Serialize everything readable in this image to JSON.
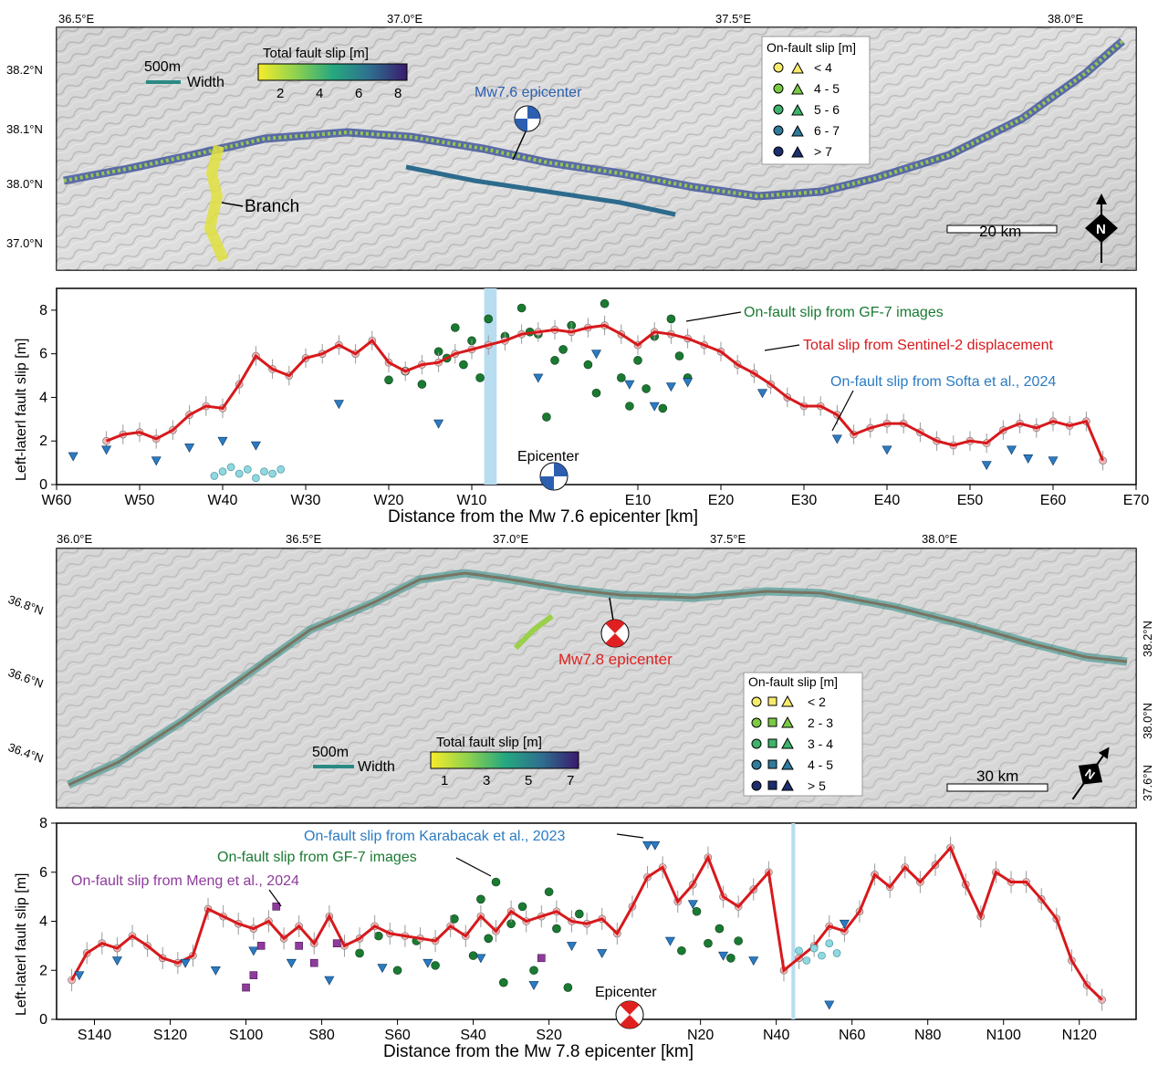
{
  "map1": {
    "lon_ticks": [
      "36.5°E",
      "37.0°E",
      "37.5°E",
      "38.0°E"
    ],
    "lat_ticks": [
      "38.2°N",
      "38.1°N",
      "38.0°N",
      "37.0°N"
    ],
    "width_label": "500m",
    "width_text": "Width",
    "colorbar_title": "Total fault slip [m]",
    "colorbar_ticks": [
      "2",
      "4",
      "6",
      "8"
    ],
    "epicenter_label": "Mw7.6 epicenter",
    "branch_label": "Branch",
    "legend_title": "On-fault slip [m]",
    "legend_items": [
      "< 4",
      "4 - 5",
      "5 - 6",
      "6 - 7",
      "> 7"
    ],
    "scale_label": "20 km",
    "north_label": "N"
  },
  "map2": {
    "lon_ticks": [
      "36.0°E",
      "36.5°E",
      "37.0°E",
      "37.5°E",
      "38.0°E"
    ],
    "lat_ticks_left": [
      "36.8°N",
      "36.6°N",
      "36.4°N"
    ],
    "lat_ticks_right": [
      "38.2°N",
      "38.0°N",
      "37.6°N"
    ],
    "width_label": "500m",
    "width_text": "Width",
    "colorbar_title": "Total fault slip [m]",
    "colorbar_ticks": [
      "1",
      "3",
      "5",
      "7"
    ],
    "epicenter_label": "Mw7.8 epicenter",
    "legend_title": "On-fault slip [m]",
    "legend_items": [
      "< 2",
      "2 - 3",
      "3 - 4",
      "4 - 5",
      "> 5"
    ],
    "scale_label": "30 km",
    "north_label": "N"
  },
  "colors": {
    "total_slip": "#d7191c",
    "sentinel_point": "#f4b6b6",
    "gf7": "#1a7a32",
    "softa": "#2b7bc2",
    "meng": "#8e3b9c",
    "cyan_points": "#8fd8e0",
    "epicenter_band": "#b8dcf0"
  },
  "chart_data": [
    {
      "type": "line",
      "title": "",
      "xlabel": "Distance from the Mw 7.6 epicenter [km]",
      "ylabel": "Left-laterl fault slip [m]",
      "xlim": [
        -60,
        70
      ],
      "ylim": [
        0,
        9
      ],
      "x_ticks": [
        -60,
        -50,
        -40,
        -30,
        -20,
        -10,
        0,
        10,
        20,
        30,
        40,
        50,
        60,
        70
      ],
      "x_tick_labels": [
        "W60",
        "W50",
        "W40",
        "W30",
        "W20",
        "W10",
        "",
        "E10",
        "E20",
        "E30",
        "E40",
        "E50",
        "E60",
        "E70"
      ],
      "y_ticks": [
        0,
        2,
        4,
        6,
        8
      ],
      "epicenter_label": "Epicenter",
      "epicenter_x": 0,
      "epicenter_band": [
        -8.5,
        -7
      ],
      "annotations": [
        "On-fault slip from GF-7 images",
        "Total slip from Sentinel-2 displacement",
        "On-fault slip from Softa et al., 2024"
      ],
      "series": [
        {
          "name": "Total slip from Sentinel-2 displacement",
          "x": [
            -54,
            -52,
            -50,
            -48,
            -46,
            -44,
            -42,
            -40,
            -38,
            -36,
            -34,
            -32,
            -30,
            -28,
            -26,
            -24,
            -22,
            -20,
            -18,
            -16,
            -14,
            -12,
            -10,
            -8,
            -6,
            -4,
            -2,
            0,
            2,
            4,
            6,
            8,
            10,
            12,
            14,
            16,
            18,
            20,
            22,
            24,
            26,
            28,
            30,
            32,
            34,
            36,
            38,
            40,
            42,
            44,
            46,
            48,
            50,
            52,
            54,
            56,
            58,
            60,
            62,
            64,
            66
          ],
          "y": [
            2.0,
            2.3,
            2.4,
            2.1,
            2.5,
            3.2,
            3.6,
            3.5,
            4.6,
            5.9,
            5.3,
            5.0,
            5.8,
            6.0,
            6.4,
            6.0,
            6.6,
            5.6,
            5.2,
            5.5,
            5.6,
            6.0,
            6.2,
            6.4,
            6.6,
            6.9,
            7.0,
            7.1,
            7.0,
            7.2,
            7.3,
            6.9,
            6.4,
            7.0,
            6.9,
            6.7,
            6.4,
            6.1,
            5.5,
            5.1,
            4.6,
            4.0,
            3.6,
            3.6,
            3.2,
            2.3,
            2.6,
            2.8,
            2.8,
            2.4,
            2.0,
            1.8,
            2.0,
            1.9,
            2.5,
            2.8,
            2.6,
            2.9,
            2.7,
            2.9,
            1.1
          ]
        },
        {
          "name": "On-fault slip from GF-7 images",
          "x": [
            -20,
            -18,
            -16,
            -14,
            -13,
            -12,
            -11,
            -10,
            -9,
            -8,
            -6,
            -4,
            -3,
            -2,
            -1,
            0,
            1,
            2,
            4,
            5,
            6,
            8,
            9,
            10,
            11,
            12,
            13,
            14,
            15,
            16
          ],
          "y": [
            4.8,
            5.2,
            4.6,
            6.1,
            5.8,
            7.2,
            5.5,
            6.6,
            4.9,
            7.6,
            6.8,
            8.1,
            7.0,
            6.9,
            3.1,
            5.7,
            6.2,
            7.3,
            5.5,
            4.2,
            8.3,
            4.9,
            3.6,
            5.7,
            4.4,
            6.8,
            3.5,
            7.6,
            5.9,
            4.9
          ]
        },
        {
          "name": "On-fault slip from Softa et al., 2024",
          "x": [
            -58,
            -54,
            -48,
            -44,
            -40,
            -36,
            -26,
            -14,
            -2,
            5,
            9,
            12,
            14,
            16,
            25,
            34,
            40,
            52,
            55,
            57,
            60
          ],
          "y": [
            1.3,
            1.6,
            1.1,
            1.7,
            2.0,
            1.8,
            3.7,
            2.8,
            4.9,
            6.0,
            4.6,
            3.6,
            4.5,
            4.7,
            4.2,
            2.1,
            1.6,
            0.9,
            1.6,
            1.2,
            1.1
          ]
        },
        {
          "name": "",
          "x": [
            -41,
            -40,
            -39,
            -38,
            -37,
            -36,
            -35,
            -34,
            -33
          ],
          "y": [
            0.4,
            0.6,
            0.8,
            0.5,
            0.7,
            0.3,
            0.6,
            0.5,
            0.7
          ]
        }
      ]
    },
    {
      "type": "line",
      "title": "",
      "xlabel": "Distance from the Mw 7.8 epicenter [km]",
      "ylabel": "Left-laterl fault slip [m]",
      "xlim": [
        -150,
        135
      ],
      "ylim": [
        0,
        8
      ],
      "x_ticks": [
        -140,
        -120,
        -100,
        -80,
        -60,
        -40,
        -20,
        0,
        20,
        40,
        60,
        80,
        100,
        120
      ],
      "x_tick_labels": [
        "S140",
        "S120",
        "S100",
        "S80",
        "S60",
        "S40",
        "S20",
        "",
        "N20",
        "N40",
        "N60",
        "N80",
        "N100",
        "N120"
      ],
      "y_ticks": [
        0,
        2,
        4,
        6,
        8
      ],
      "epicenter_label": "Epicenter",
      "epicenter_x": 0,
      "epicenter_band": [
        44,
        45
      ],
      "annotations": [
        "On-fault slip from Karabacak et al., 2023",
        "On-fault slip from GF-7 images",
        "On-fault slip from Meng et al., 2024"
      ],
      "series": [
        {
          "name": "Total slip from Sentinel-2 displacement",
          "x": [
            -146,
            -142,
            -138,
            -134,
            -130,
            -126,
            -122,
            -118,
            -114,
            -110,
            -106,
            -102,
            -98,
            -94,
            -90,
            -86,
            -82,
            -78,
            -74,
            -70,
            -66,
            -62,
            -58,
            -54,
            -50,
            -46,
            -42,
            -38,
            -34,
            -30,
            -26,
            -22,
            -18,
            -14,
            -10,
            -6,
            -2,
            2,
            6,
            10,
            14,
            18,
            22,
            26,
            30,
            34,
            38,
            42,
            46,
            50,
            54,
            58,
            62,
            66,
            70,
            74,
            78,
            82,
            86,
            90,
            94,
            98,
            102,
            106,
            110,
            114,
            118,
            122,
            126
          ],
          "y": [
            1.6,
            2.7,
            3.1,
            2.9,
            3.4,
            3.0,
            2.5,
            2.3,
            2.6,
            4.5,
            4.2,
            3.9,
            3.7,
            4.0,
            3.3,
            3.8,
            3.1,
            4.2,
            3.0,
            3.3,
            3.8,
            3.5,
            3.4,
            3.3,
            3.2,
            3.8,
            3.4,
            4.2,
            3.6,
            4.4,
            4.0,
            4.2,
            4.4,
            4.0,
            3.9,
            4.1,
            3.5,
            4.6,
            5.8,
            6.2,
            4.8,
            5.5,
            6.6,
            5.0,
            4.6,
            5.3,
            6.0,
            2.0,
            2.5,
            3.0,
            3.8,
            3.6,
            4.4,
            5.9,
            5.4,
            6.2,
            5.6,
            6.3,
            7.0,
            5.5,
            4.2,
            6.0,
            5.6,
            5.6,
            4.9,
            4.1,
            2.4,
            1.4,
            0.8
          ]
        },
        {
          "name": "On-fault slip from GF-7 images",
          "x": [
            -70,
            -65,
            -60,
            -55,
            -50,
            -45,
            -40,
            -38,
            -36,
            -34,
            -32,
            -30,
            -27,
            -24,
            -20,
            -18,
            -15,
            -12,
            15,
            19,
            22,
            25,
            28,
            30
          ],
          "y": [
            2.7,
            3.4,
            2.0,
            3.2,
            2.2,
            4.1,
            2.6,
            4.9,
            3.3,
            5.6,
            1.5,
            3.9,
            4.6,
            2.0,
            5.2,
            3.7,
            1.3,
            4.3,
            2.8,
            4.4,
            3.1,
            3.7,
            2.5,
            3.2
          ]
        },
        {
          "name": "On-fault slip from Karabacak et al., 2023",
          "x": [
            -144,
            -134,
            -116,
            -108,
            -98,
            -88,
            -78,
            -64,
            -52,
            -38,
            -24,
            -14,
            -6,
            6,
            8,
            12,
            18,
            26,
            34,
            54,
            58
          ],
          "y": [
            1.8,
            2.4,
            2.3,
            2.0,
            2.8,
            2.3,
            1.6,
            2.1,
            2.3,
            2.5,
            1.4,
            3.0,
            2.7,
            7.1,
            7.1,
            3.2,
            4.7,
            2.6,
            2.4,
            0.6,
            3.9
          ]
        },
        {
          "name": "On-fault slip from Meng et al., 2024",
          "x": [
            -100,
            -98,
            -96,
            -92,
            -86,
            -82,
            -76,
            -22
          ],
          "y": [
            1.3,
            1.8,
            3.0,
            4.6,
            3.0,
            2.3,
            3.1,
            2.5
          ]
        },
        {
          "name": "",
          "x": [
            46,
            48,
            50,
            52,
            54,
            56
          ],
          "y": [
            2.8,
            2.4,
            2.9,
            2.6,
            3.1,
            2.7
          ]
        }
      ]
    }
  ]
}
